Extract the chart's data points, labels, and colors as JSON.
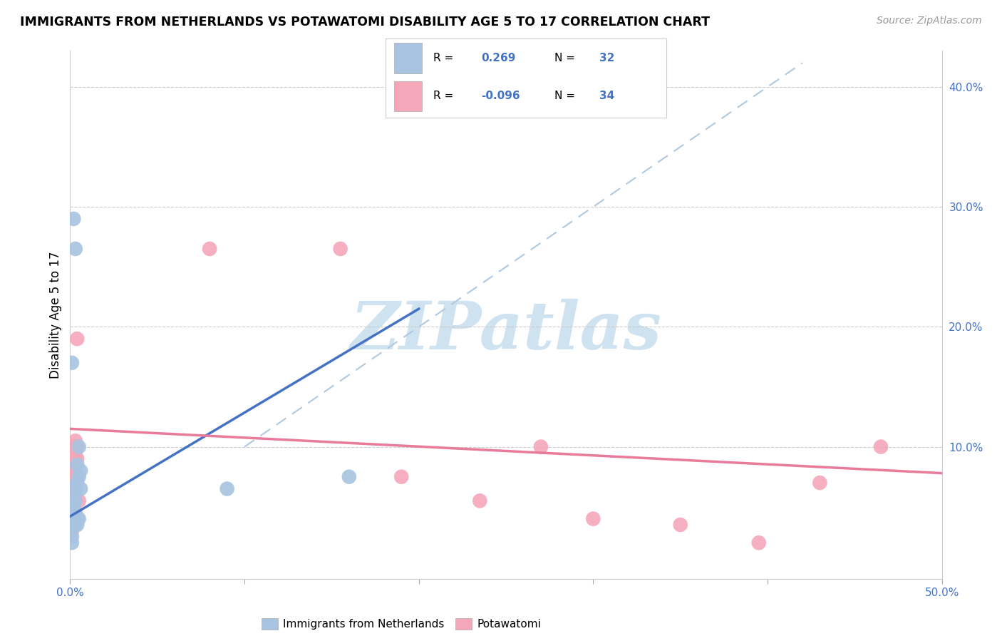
{
  "title": "IMMIGRANTS FROM NETHERLANDS VS POTAWATOMI DISABILITY AGE 5 TO 17 CORRELATION CHART",
  "source": "Source: ZipAtlas.com",
  "ylabel": "Disability Age 5 to 17",
  "xlim": [
    0.0,
    0.5
  ],
  "ylim": [
    -0.01,
    0.43
  ],
  "xticks": [
    0.0,
    0.1,
    0.2,
    0.3,
    0.4,
    0.5
  ],
  "xticklabels": [
    "0.0%",
    "",
    "",
    "",
    "",
    "50.0%"
  ],
  "yticks_right": [
    0.1,
    0.2,
    0.3,
    0.4
  ],
  "yticklabels_right": [
    "10.0%",
    "20.0%",
    "30.0%",
    "40.0%"
  ],
  "blue_R": 0.269,
  "blue_N": 32,
  "pink_R": -0.096,
  "pink_N": 34,
  "blue_color": "#a8c4e0",
  "pink_color": "#f4a7b9",
  "blue_line_color": "#4472c4",
  "pink_line_color": "#e87a9a",
  "grid_color": "#cccccc",
  "watermark": "ZIPatlas",
  "watermark_color": "#cfe2f0",
  "blue_scatter_x": [
    0.001,
    0.001,
    0.001,
    0.002,
    0.002,
    0.002,
    0.002,
    0.003,
    0.003,
    0.003,
    0.003,
    0.003,
    0.004,
    0.004,
    0.004,
    0.004,
    0.005,
    0.005,
    0.005,
    0.006,
    0.006,
    0.001,
    0.001,
    0.0,
    0.0,
    0.0,
    0.0,
    0.001,
    0.002,
    0.003,
    0.09,
    0.16
  ],
  "blue_scatter_y": [
    0.04,
    0.04,
    0.035,
    0.035,
    0.04,
    0.04,
    0.05,
    0.035,
    0.04,
    0.045,
    0.055,
    0.065,
    0.035,
    0.04,
    0.07,
    0.085,
    0.04,
    0.075,
    0.1,
    0.065,
    0.08,
    0.025,
    0.02,
    0.03,
    0.035,
    0.04,
    0.055,
    0.17,
    0.29,
    0.265,
    0.065,
    0.075
  ],
  "pink_scatter_x": [
    0.001,
    0.001,
    0.002,
    0.002,
    0.002,
    0.003,
    0.003,
    0.003,
    0.003,
    0.004,
    0.004,
    0.004,
    0.005,
    0.001,
    0.002,
    0.002,
    0.001,
    0.001,
    0.002,
    0.003,
    0.002,
    0.003,
    0.003,
    0.004,
    0.08,
    0.155,
    0.19,
    0.235,
    0.27,
    0.3,
    0.35,
    0.395,
    0.43,
    0.465
  ],
  "pink_scatter_y": [
    0.065,
    0.075,
    0.065,
    0.075,
    0.09,
    0.1,
    0.105,
    0.075,
    0.085,
    0.075,
    0.09,
    0.1,
    0.055,
    0.035,
    0.035,
    0.04,
    0.03,
    0.04,
    0.035,
    0.085,
    0.04,
    0.045,
    0.095,
    0.19,
    0.265,
    0.265,
    0.075,
    0.055,
    0.1,
    0.04,
    0.035,
    0.02,
    0.07,
    0.1
  ],
  "blue_line_x": [
    0.0,
    0.2
  ],
  "blue_line_y": [
    0.042,
    0.215
  ],
  "pink_line_x": [
    0.0,
    0.5
  ],
  "pink_line_y": [
    0.115,
    0.078
  ],
  "ref_line_x": [
    0.1,
    0.42
  ],
  "ref_line_y": [
    0.1,
    0.42
  ]
}
